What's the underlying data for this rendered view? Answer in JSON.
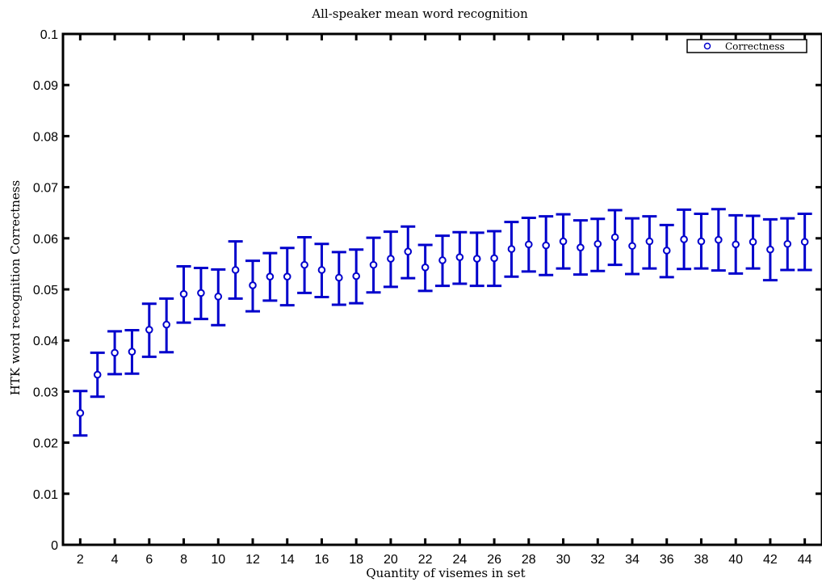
{
  "chart_data": {
    "type": "scatter",
    "title": "All-speaker mean word recognition",
    "xlabel": "Quantity of visemes in set",
    "ylabel": "HTK word recognition Correctness",
    "xlim": [
      1,
      45
    ],
    "ylim": [
      0,
      0.1
    ],
    "x_ticks": [
      2,
      4,
      6,
      8,
      10,
      12,
      14,
      16,
      18,
      20,
      22,
      24,
      26,
      28,
      30,
      32,
      34,
      36,
      38,
      40,
      42,
      44
    ],
    "y_ticks": [
      0,
      0.01,
      0.02,
      0.03,
      0.04,
      0.05,
      0.06,
      0.07,
      0.08,
      0.09,
      0.1
    ],
    "y_tick_labels": [
      "0",
      "0.01",
      "0.02",
      "0.03",
      "0.04",
      "0.05",
      "0.06",
      "0.07",
      "0.08",
      "0.09",
      "0.1"
    ],
    "grid": false,
    "legend_position": "top-right",
    "series": [
      {
        "name": "Correctness",
        "color": "#0000cc",
        "marker": "circle",
        "x": [
          2,
          3,
          4,
          5,
          6,
          7,
          8,
          9,
          10,
          11,
          12,
          13,
          14,
          15,
          16,
          17,
          18,
          19,
          20,
          21,
          22,
          23,
          24,
          25,
          26,
          27,
          28,
          29,
          30,
          31,
          32,
          33,
          34,
          35,
          36,
          37,
          38,
          39,
          40,
          41,
          42,
          43,
          44
        ],
        "y": [
          0.0258,
          0.0333,
          0.0376,
          0.0378,
          0.0421,
          0.0431,
          0.0491,
          0.0493,
          0.0486,
          0.0538,
          0.0508,
          0.0525,
          0.0525,
          0.0548,
          0.0538,
          0.0523,
          0.0526,
          0.0548,
          0.056,
          0.0574,
          0.0543,
          0.0557,
          0.0563,
          0.056,
          0.0561,
          0.0579,
          0.0588,
          0.0586,
          0.0594,
          0.0582,
          0.0589,
          0.0602,
          0.0585,
          0.0594,
          0.0576,
          0.0598,
          0.0594,
          0.0597,
          0.0588,
          0.0593,
          0.0578,
          0.0589,
          0.0593
        ],
        "err_low": [
          0.0214,
          0.029,
          0.0334,
          0.0335,
          0.0368,
          0.0377,
          0.0435,
          0.0442,
          0.043,
          0.0482,
          0.0457,
          0.0478,
          0.0469,
          0.0493,
          0.0485,
          0.047,
          0.0473,
          0.0494,
          0.0505,
          0.0522,
          0.0497,
          0.0507,
          0.0511,
          0.0507,
          0.0507,
          0.0525,
          0.0535,
          0.0528,
          0.0541,
          0.0529,
          0.0536,
          0.0548,
          0.053,
          0.0541,
          0.0524,
          0.054,
          0.0541,
          0.0537,
          0.0531,
          0.0541,
          0.0518,
          0.0538,
          0.0538
        ],
        "err_high": [
          0.0301,
          0.0376,
          0.0418,
          0.042,
          0.0472,
          0.0482,
          0.0545,
          0.0542,
          0.0539,
          0.0594,
          0.0556,
          0.0571,
          0.0581,
          0.0602,
          0.0589,
          0.0573,
          0.0578,
          0.0601,
          0.0613,
          0.0623,
          0.0587,
          0.0605,
          0.0612,
          0.0611,
          0.0614,
          0.0632,
          0.064,
          0.0643,
          0.0647,
          0.0635,
          0.0638,
          0.0655,
          0.0639,
          0.0643,
          0.0626,
          0.0656,
          0.0648,
          0.0657,
          0.0645,
          0.0644,
          0.0637,
          0.0639,
          0.0648
        ]
      }
    ]
  }
}
